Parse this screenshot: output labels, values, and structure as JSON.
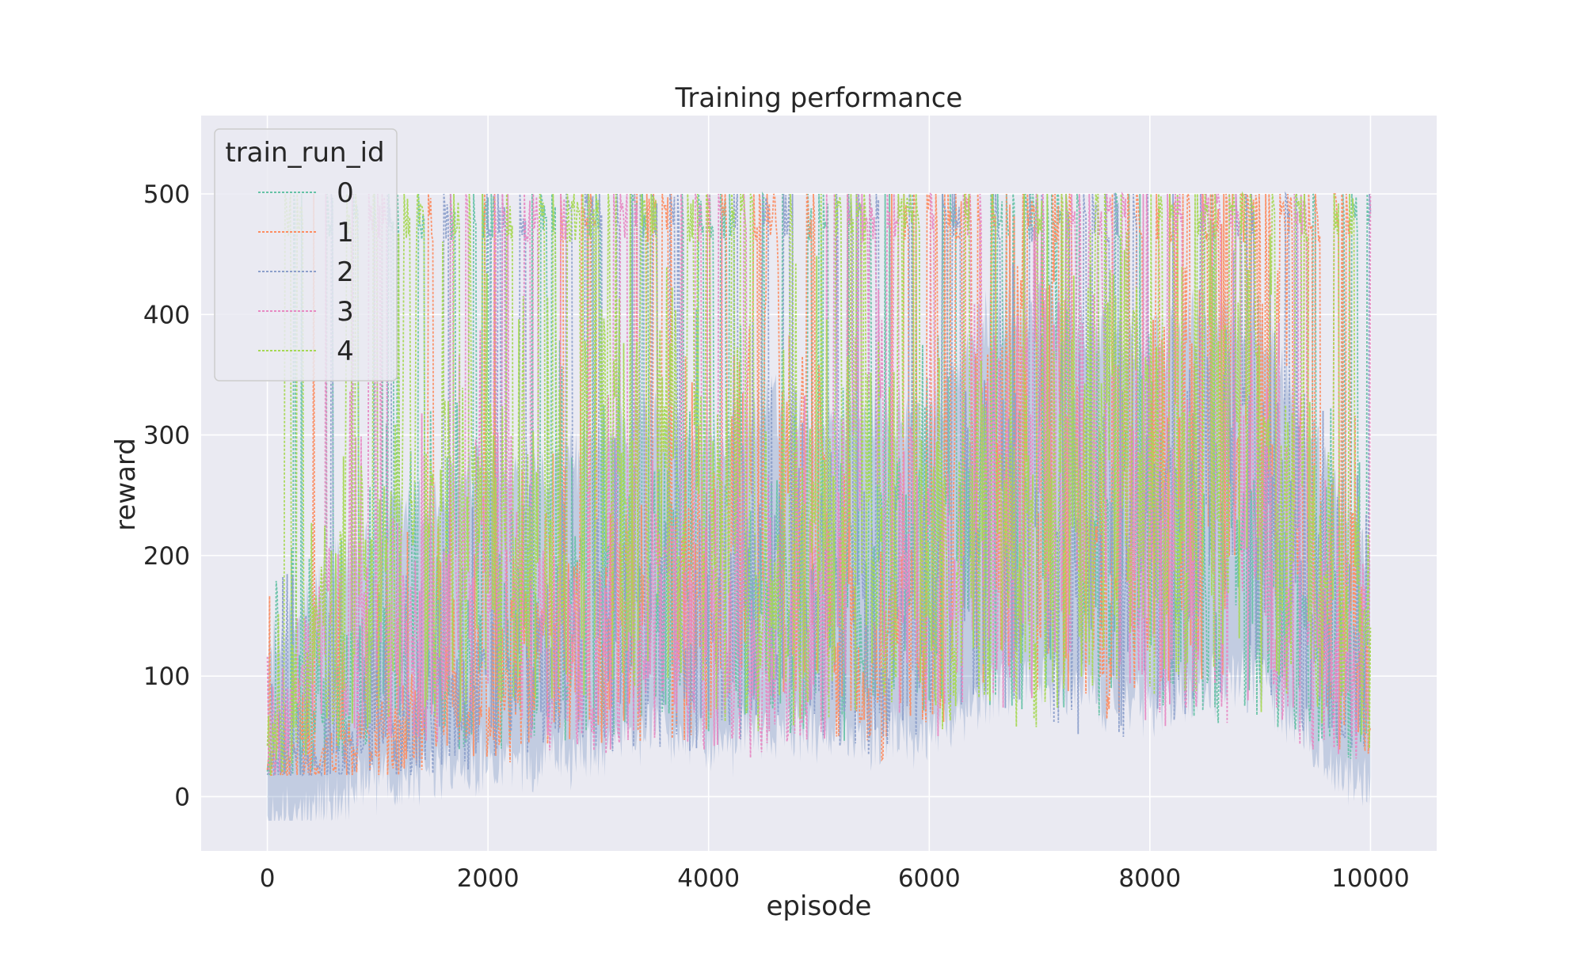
{
  "chart_data": {
    "type": "line",
    "title": "Training performance",
    "xlabel": "episode",
    "ylabel": "reward",
    "xlim": [
      -600,
      10600
    ],
    "ylim": [
      -45,
      565
    ],
    "x_ticks": [
      0,
      2000,
      4000,
      6000,
      8000,
      10000
    ],
    "x_tick_labels": [
      "0",
      "2000",
      "4000",
      "6000",
      "8000",
      "10000"
    ],
    "y_ticks": [
      0,
      100,
      200,
      300,
      400,
      500
    ],
    "y_tick_labels": [
      "0",
      "100",
      "200",
      "300",
      "400",
      "500"
    ],
    "grid": true,
    "style": "seaborn-darkgrid",
    "legend": {
      "title": "train_run_id",
      "placement": "upper-left"
    },
    "x_range": [
      0,
      10000
    ],
    "y_cap": 500,
    "band": {
      "color": "#4c72b0",
      "mean_color": "#3b5e9e"
    },
    "series": [
      {
        "name": "0",
        "color": "#66c2a5",
        "knots": [
          [
            0,
            30
          ],
          [
            500,
            70
          ],
          [
            1000,
            110
          ],
          [
            1500,
            130
          ],
          [
            2000,
            120
          ],
          [
            2500,
            160
          ],
          [
            3000,
            140
          ],
          [
            3500,
            180
          ],
          [
            4000,
            150
          ],
          [
            4500,
            170
          ],
          [
            5000,
            130
          ],
          [
            5500,
            160
          ],
          [
            6000,
            200
          ],
          [
            6500,
            220
          ],
          [
            7000,
            240
          ],
          [
            7500,
            180
          ],
          [
            8000,
            200
          ],
          [
            8500,
            150
          ],
          [
            9000,
            170
          ],
          [
            9500,
            130
          ],
          [
            10000,
            80
          ]
        ]
      },
      {
        "name": "1",
        "color": "#fc8d62",
        "knots": [
          [
            0,
            25
          ],
          [
            500,
            30
          ],
          [
            1000,
            50
          ],
          [
            1500,
            70
          ],
          [
            2000,
            90
          ],
          [
            2500,
            100
          ],
          [
            3000,
            130
          ],
          [
            3500,
            150
          ],
          [
            4000,
            140
          ],
          [
            4500,
            280
          ],
          [
            5000,
            200
          ],
          [
            5500,
            90
          ],
          [
            6000,
            150
          ],
          [
            6500,
            300
          ],
          [
            7000,
            280
          ],
          [
            7500,
            200
          ],
          [
            8000,
            230
          ],
          [
            8500,
            320
          ],
          [
            9000,
            340
          ],
          [
            9500,
            150
          ],
          [
            10000,
            90
          ]
        ]
      },
      {
        "name": "2",
        "color": "#8da0cb",
        "knots": [
          [
            0,
            20
          ],
          [
            500,
            28
          ],
          [
            1000,
            45
          ],
          [
            1500,
            60
          ],
          [
            2000,
            80
          ],
          [
            2500,
            100
          ],
          [
            3000,
            110
          ],
          [
            3500,
            120
          ],
          [
            4000,
            110
          ],
          [
            4500,
            160
          ],
          [
            5000,
            150
          ],
          [
            5500,
            110
          ],
          [
            6000,
            160
          ],
          [
            6500,
            220
          ],
          [
            7000,
            210
          ],
          [
            7500,
            150
          ],
          [
            8000,
            170
          ],
          [
            8500,
            240
          ],
          [
            9000,
            200
          ],
          [
            9500,
            140
          ],
          [
            10000,
            100
          ]
        ]
      },
      {
        "name": "3",
        "color": "#e78ac3",
        "knots": [
          [
            0,
            40
          ],
          [
            500,
            110
          ],
          [
            1000,
            150
          ],
          [
            1500,
            120
          ],
          [
            2000,
            200
          ],
          [
            2500,
            120
          ],
          [
            3000,
            110
          ],
          [
            3500,
            140
          ],
          [
            4000,
            120
          ],
          [
            4500,
            100
          ],
          [
            5000,
            140
          ],
          [
            5500,
            260
          ],
          [
            6000,
            140
          ],
          [
            6500,
            200
          ],
          [
            7000,
            260
          ],
          [
            7500,
            250
          ],
          [
            8000,
            200
          ],
          [
            8500,
            180
          ],
          [
            9000,
            200
          ],
          [
            9500,
            120
          ],
          [
            10000,
            80
          ]
        ]
      },
      {
        "name": "4",
        "color": "#a6d854",
        "knots": [
          [
            0,
            40
          ],
          [
            500,
            120
          ],
          [
            1000,
            190
          ],
          [
            1500,
            210
          ],
          [
            2000,
            200
          ],
          [
            2500,
            190
          ],
          [
            3000,
            260
          ],
          [
            3500,
            280
          ],
          [
            4000,
            220
          ],
          [
            4500,
            170
          ],
          [
            5000,
            200
          ],
          [
            5500,
            230
          ],
          [
            6000,
            180
          ],
          [
            6500,
            170
          ],
          [
            7000,
            190
          ],
          [
            7500,
            300
          ],
          [
            8000,
            230
          ],
          [
            8500,
            260
          ],
          [
            9000,
            230
          ],
          [
            9500,
            200
          ],
          [
            10000,
            90
          ]
        ]
      }
    ]
  }
}
